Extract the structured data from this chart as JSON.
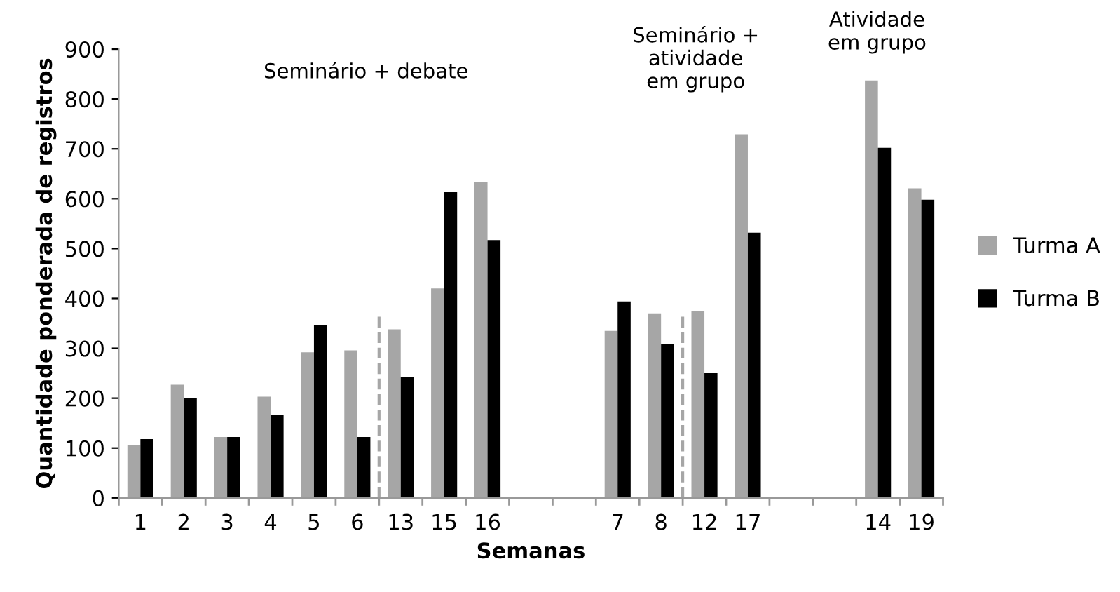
{
  "chart_data": {
    "type": "bar",
    "xlabel": "Semanas",
    "ylabel": "Quantidade ponderada de registros",
    "categories": [
      "1",
      "2",
      "3",
      "4",
      "5",
      "6",
      "13",
      "15",
      "16",
      null,
      null,
      "7",
      "8",
      "12",
      "17",
      null,
      null,
      "14",
      "19"
    ],
    "series": [
      {
        "name": "Turma A",
        "color": "#a6a6a6",
        "values": [
          106,
          227,
          122,
          203,
          292,
          296,
          338,
          420,
          634,
          null,
          null,
          335,
          370,
          374,
          729,
          null,
          null,
          837,
          621
        ]
      },
      {
        "name": "Turma B",
        "color": "#000000",
        "values": [
          118,
          200,
          122,
          166,
          347,
          122,
          243,
          613,
          517,
          null,
          null,
          394,
          308,
          250,
          532,
          null,
          null,
          702,
          598
        ]
      }
    ],
    "ylim": [
      0,
      900
    ],
    "yticks": [
      0,
      100,
      200,
      300,
      400,
      500,
      600,
      700,
      800,
      900
    ],
    "grid": false,
    "legend": "right",
    "annotations": [
      "Seminário + debate",
      "Seminário +\natividade\nem grupo",
      "Atividade\nem grupo"
    ]
  }
}
